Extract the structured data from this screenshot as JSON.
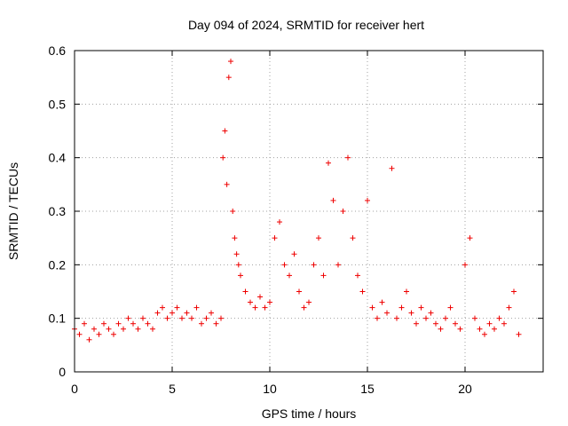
{
  "chart_data": {
    "type": "scatter",
    "title": "Day 094 of 2024, SRMTID for receiver hert",
    "xlabel": "GPS time / hours",
    "ylabel": "SRMTID / TECUs",
    "xlim": [
      0,
      24
    ],
    "ylim": [
      0,
      0.6
    ],
    "x_ticks": [
      0,
      5,
      10,
      15,
      20
    ],
    "x_tick_labels": [
      "0",
      "5",
      "10",
      "15",
      "20"
    ],
    "y_ticks": [
      0,
      0.1,
      0.2,
      0.3,
      0.4,
      0.5,
      0.6
    ],
    "y_tick_labels": [
      "0",
      "0.1",
      "0.2",
      "0.3",
      "0.4",
      "0.5",
      "0.6"
    ],
    "grid": true,
    "marker": "plus",
    "color": "#ee0000",
    "series": [
      {
        "name": "SRMTID",
        "x": [
          0.0,
          0.25,
          0.5,
          0.75,
          1.0,
          1.25,
          1.5,
          1.75,
          2.0,
          2.25,
          2.5,
          2.75,
          3.0,
          3.25,
          3.5,
          3.75,
          4.0,
          4.25,
          4.5,
          4.75,
          5.0,
          5.25,
          5.5,
          5.75,
          6.0,
          6.25,
          6.5,
          6.75,
          7.0,
          7.25,
          7.5,
          7.6,
          7.7,
          7.8,
          7.9,
          8.0,
          8.1,
          8.2,
          8.3,
          8.4,
          8.5,
          8.75,
          9.0,
          9.25,
          9.5,
          9.75,
          10.0,
          10.25,
          10.5,
          10.75,
          11.0,
          11.25,
          11.5,
          11.75,
          12.0,
          12.25,
          12.5,
          12.75,
          13.0,
          13.25,
          13.5,
          13.75,
          14.0,
          14.25,
          14.5,
          14.75,
          15.0,
          15.25,
          15.5,
          15.75,
          16.0,
          16.25,
          16.5,
          16.75,
          17.0,
          17.25,
          17.5,
          17.75,
          18.0,
          18.25,
          18.5,
          18.75,
          19.0,
          19.25,
          19.5,
          19.75,
          20.0,
          20.25,
          20.5,
          20.75,
          21.0,
          21.25,
          21.5,
          21.75,
          22.0,
          22.25,
          22.5,
          22.75
        ],
        "y": [
          0.08,
          0.07,
          0.09,
          0.06,
          0.08,
          0.07,
          0.09,
          0.08,
          0.07,
          0.09,
          0.08,
          0.1,
          0.09,
          0.08,
          0.1,
          0.09,
          0.08,
          0.11,
          0.12,
          0.1,
          0.11,
          0.12,
          0.1,
          0.11,
          0.1,
          0.12,
          0.09,
          0.1,
          0.11,
          0.09,
          0.1,
          0.4,
          0.45,
          0.35,
          0.55,
          0.58,
          0.3,
          0.25,
          0.22,
          0.2,
          0.18,
          0.15,
          0.13,
          0.12,
          0.14,
          0.12,
          0.13,
          0.25,
          0.28,
          0.2,
          0.18,
          0.22,
          0.15,
          0.12,
          0.13,
          0.2,
          0.25,
          0.18,
          0.39,
          0.32,
          0.2,
          0.3,
          0.4,
          0.25,
          0.18,
          0.15,
          0.32,
          0.12,
          0.1,
          0.13,
          0.11,
          0.38,
          0.1,
          0.12,
          0.15,
          0.11,
          0.09,
          0.12,
          0.1,
          0.11,
          0.09,
          0.08,
          0.1,
          0.12,
          0.09,
          0.08,
          0.2,
          0.25,
          0.1,
          0.08,
          0.07,
          0.09,
          0.08,
          0.1,
          0.09,
          0.12,
          0.15,
          0.07
        ]
      }
    ]
  }
}
